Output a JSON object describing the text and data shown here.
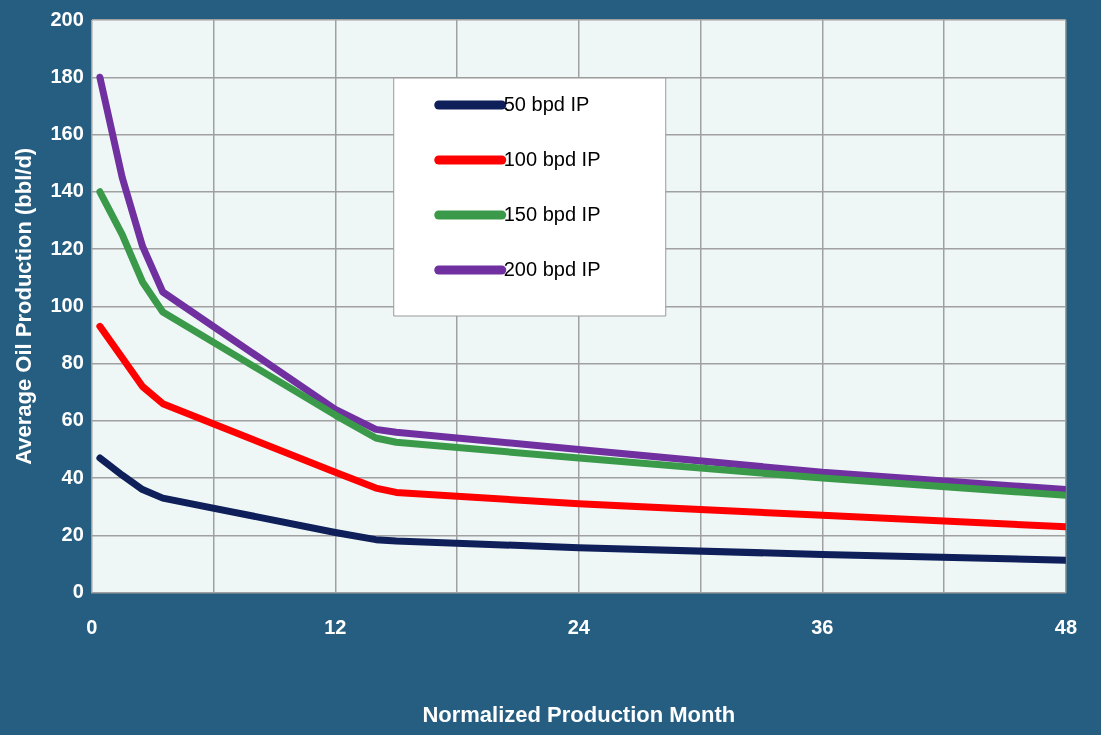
{
  "chart_data": {
    "type": "line",
    "xlabel": "Normalized Production Month",
    "ylabel": "Average Oil Production (bbl/d)",
    "xlim": [
      0,
      48
    ],
    "xticks": [
      0,
      {
        "value": 6,
        "label": null
      },
      12,
      {
        "value": 18,
        "label": null
      },
      24,
      {
        "value": 30,
        "label": null
      },
      36,
      {
        "value": 42,
        "label": null
      },
      48
    ],
    "ylim": [
      0,
      200
    ],
    "yticks": [
      0,
      20,
      40,
      60,
      80,
      100,
      120,
      140,
      160,
      180,
      200
    ],
    "grid": true,
    "legend": "top",
    "marker": "none",
    "line_style": "solid",
    "x": [
      0.4,
      1.5,
      2.5,
      3.5,
      12,
      14,
      15,
      24,
      36,
      48
    ],
    "series": [
      {
        "name": "50 bpd IP",
        "color": "#0f1f5a",
        "values": [
          47,
          41,
          36,
          33,
          21,
          18.5,
          18,
          15.7,
          13.3,
          11.3
        ]
      },
      {
        "name": "100 bpd IP",
        "color": "#ff0000",
        "values": [
          93,
          82,
          72,
          66,
          42,
          36.5,
          35,
          31,
          27,
          23
        ]
      },
      {
        "name": "150 bpd IP",
        "color": "#3a9a4a",
        "values": [
          140,
          125,
          108.5,
          98,
          62,
          54,
          52.5,
          47,
          40,
          34
        ]
      },
      {
        "name": "200 bpd IP",
        "color": "#7030a0",
        "values": [
          180,
          145,
          121,
          105,
          64,
          57,
          56,
          50,
          42,
          36
        ]
      }
    ]
  }
}
